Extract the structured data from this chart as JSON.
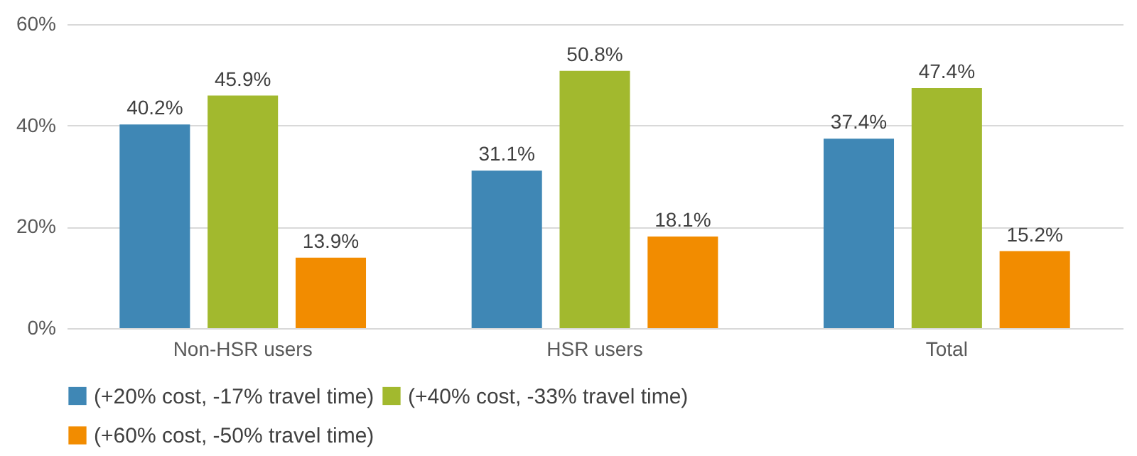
{
  "chart_data": {
    "type": "bar",
    "categories": [
      "Non-HSR users",
      "HSR users",
      "Total"
    ],
    "series": [
      {
        "name": "(+20% cost, -17% travel time)",
        "color": "#3f87b5",
        "values": [
          40.2,
          31.1,
          37.4
        ],
        "value_labels": [
          "40.2%",
          "31.1%",
          "37.4%"
        ]
      },
      {
        "name": "(+40% cost, -33% travel time)",
        "color": "#a2b92e",
        "values": [
          45.9,
          50.8,
          47.4
        ],
        "value_labels": [
          "45.9%",
          "50.8%",
          "47.4%"
        ]
      },
      {
        "name": "(+60% cost, -50% travel time)",
        "color": "#f28c00",
        "values": [
          13.9,
          18.1,
          15.2
        ],
        "value_labels": [
          "13.9%",
          "18.1%",
          "15.2%"
        ]
      }
    ],
    "ylim": [
      0,
      60
    ],
    "yticks": [
      {
        "value": 0,
        "label": "0%"
      },
      {
        "value": 20,
        "label": "20%"
      },
      {
        "value": 40,
        "label": "40%"
      },
      {
        "value": 60,
        "label": "60%"
      }
    ],
    "grid": "y",
    "legend": "bottom"
  }
}
